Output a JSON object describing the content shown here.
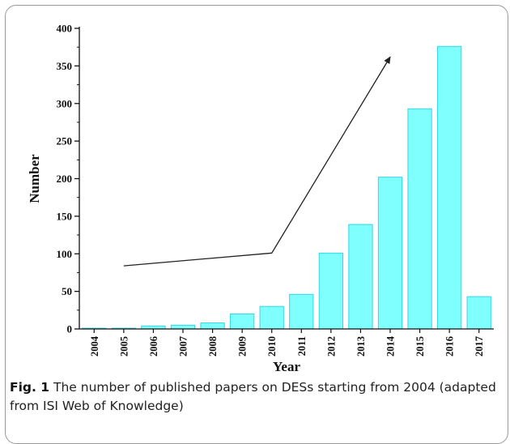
{
  "chart_data": {
    "type": "bar",
    "categories": [
      "2004",
      "2005",
      "2006",
      "2007",
      "2008",
      "2009",
      "2010",
      "2011",
      "2012",
      "2013",
      "2014",
      "2015",
      "2016",
      "2017"
    ],
    "values": [
      1,
      1,
      4,
      5,
      8,
      20,
      30,
      46,
      101,
      139,
      202,
      293,
      376,
      43
    ],
    "xlabel": "Year",
    "ylabel": "Number",
    "ylim": [
      0,
      400
    ],
    "yticks": [
      0,
      50,
      100,
      150,
      200,
      250,
      300,
      350,
      400
    ],
    "grid": false,
    "bar_color": "#80FFFF",
    "bar_edge_color": "#33D6E6",
    "trend_arrow": {
      "points": [
        [
          "2005",
          84
        ],
        [
          "2010",
          101
        ],
        [
          "2014",
          362
        ]
      ]
    }
  },
  "caption": {
    "label": "Fig. 1",
    "text": "The number of published papers on DESs starting from 2004 (adapted from ISI Web of Knowledge)"
  }
}
